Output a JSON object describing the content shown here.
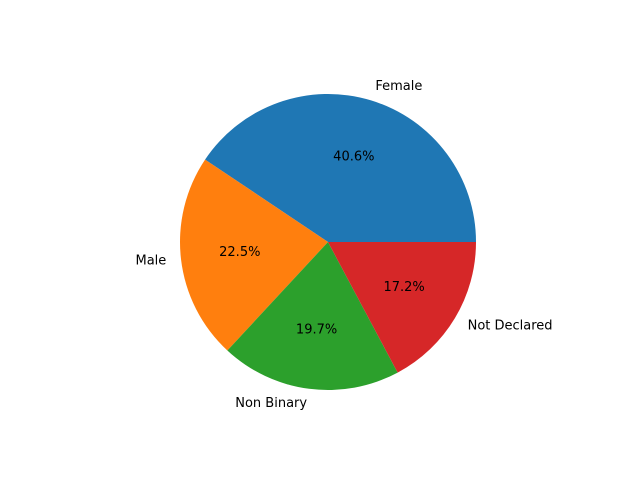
{
  "chart_data": {
    "type": "pie",
    "title": "",
    "start_angle_deg": 0,
    "direction": "counterclockwise",
    "slices": [
      {
        "label": "Female",
        "value": 40.6,
        "pct_label": "40.6%",
        "color": "#1f77b4"
      },
      {
        "label": "Male",
        "value": 22.5,
        "pct_label": "22.5%",
        "color": "#ff7f0e"
      },
      {
        "label": "Non Binary",
        "value": 19.7,
        "pct_label": "19.7%",
        "color": "#2ca02c"
      },
      {
        "label": "Not Declared",
        "value": 17.2,
        "pct_label": "17.2%",
        "color": "#d62728"
      }
    ]
  }
}
